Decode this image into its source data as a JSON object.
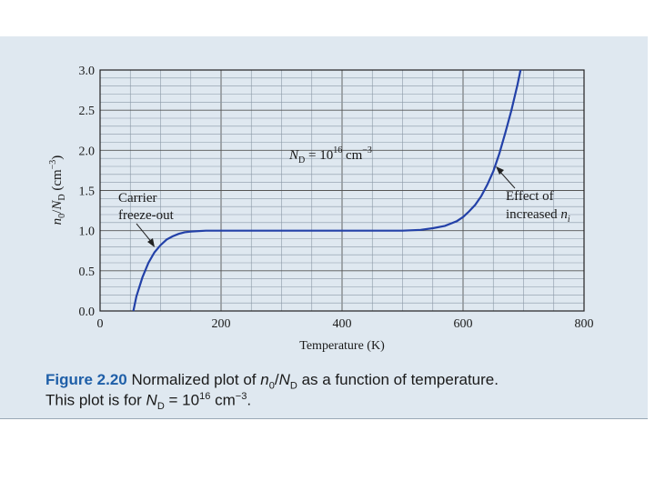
{
  "chart_data": {
    "type": "line",
    "title": "",
    "xlabel": "Temperature (K)",
    "ylabel": "n0/ND (cm−3)",
    "xlim": [
      0,
      800
    ],
    "ylim": [
      0,
      3.0
    ],
    "x_ticks": [
      0,
      200,
      400,
      600,
      800
    ],
    "x_tick_labels": [
      "0",
      "200",
      "400",
      "600",
      "800"
    ],
    "y_ticks": [
      0,
      0.5,
      1.0,
      1.5,
      2.0,
      2.5,
      3.0
    ],
    "y_tick_labels": [
      "0.0",
      "0.5",
      "1.0",
      "1.5",
      "2.0",
      "2.5",
      "3.0"
    ],
    "grid": true,
    "series": [
      {
        "name": "n0/ND",
        "color": "#2341a8",
        "x": [
          55,
          60,
          70,
          80,
          90,
          100,
          110,
          120,
          130,
          140,
          150,
          175,
          200,
          300,
          400,
          450,
          500,
          530,
          550,
          570,
          590,
          600,
          610,
          620,
          630,
          640,
          650,
          660,
          670,
          680,
          690,
          695
        ],
        "y": [
          0.0,
          0.18,
          0.42,
          0.6,
          0.73,
          0.82,
          0.89,
          0.93,
          0.96,
          0.98,
          0.99,
          1.0,
          1.0,
          1.0,
          1.0,
          1.0,
          1.0,
          1.01,
          1.03,
          1.06,
          1.12,
          1.17,
          1.24,
          1.32,
          1.43,
          1.57,
          1.74,
          1.96,
          2.22,
          2.5,
          2.82,
          3.0
        ]
      }
    ],
    "annotations": {
      "nd_prefix": "N",
      "nd_sub": "D",
      "nd_mid": " = 10",
      "nd_exp": "16",
      "nd_unit": " cm",
      "nd_unit_exp": "−3",
      "freeze_line1": "Carrier",
      "freeze_line2": "freeze-out",
      "effect_line1": "Effect of",
      "effect_line2": "increased ",
      "effect_var": "n",
      "effect_sub": "i"
    },
    "ylabel_parts": {
      "n": "n",
      "n_sub": "0",
      "slash": "/",
      "N": "N",
      "N_sub": "D",
      "unit_open": " (cm",
      "unit_exp": "−3",
      "unit_close": ")"
    }
  },
  "caption": {
    "figure_label": "Figure 2.20",
    "line1_text": " Normalized plot of ",
    "var_n": "n",
    "var_n_sub": "0",
    "slash": "/",
    "var_N": "N",
    "var_N_sub": "D",
    "line1_end": " as a function of temperature.",
    "line2_start": "This plot is for ",
    "line2_N": "N",
    "line2_N_sub": "D",
    "line2_eq": " = 10",
    "line2_exp": "16",
    "line2_unit": " cm",
    "line2_unit_exp": "−3",
    "line2_end": "."
  },
  "colors": {
    "curve": "#2341a8",
    "figure_label": "#1f5fa8",
    "panel": "#dfe8f0"
  }
}
